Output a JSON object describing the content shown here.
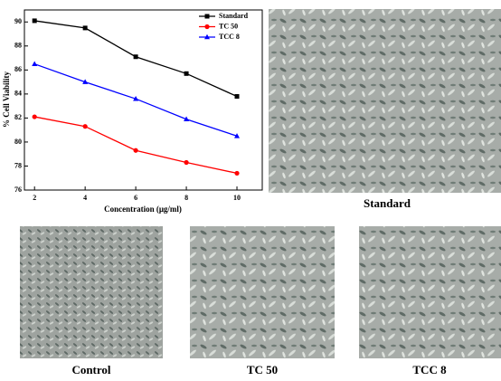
{
  "chart_data": {
    "type": "line",
    "x_label": "Concentration (μg/ml)",
    "y_label": "% Cell Viability",
    "x": [
      2,
      4,
      6,
      8,
      10
    ],
    "series": [
      {
        "name": "Standard",
        "color": "#000000",
        "marker": "square",
        "values": [
          90.1,
          89.5,
          87.1,
          85.7,
          83.8
        ]
      },
      {
        "name": "TC 50",
        "color": "#ff0000",
        "marker": "circle",
        "values": [
          82.1,
          81.3,
          79.3,
          78.3,
          77.4
        ]
      },
      {
        "name": "TCC 8",
        "color": "#0000ff",
        "marker": "triangle",
        "values": [
          86.5,
          85.0,
          83.6,
          81.9,
          80.5
        ]
      }
    ],
    "xlim": [
      1.6,
      11
    ],
    "xticks": [
      2,
      4,
      6,
      8,
      10
    ],
    "ylim": [
      76,
      91
    ],
    "yticks": [
      76,
      78,
      80,
      82,
      84,
      86,
      88,
      90
    ],
    "legend": "upper right"
  },
  "panel_labels": [
    "Standard",
    "Control",
    "TC 50",
    "TCC 8"
  ]
}
